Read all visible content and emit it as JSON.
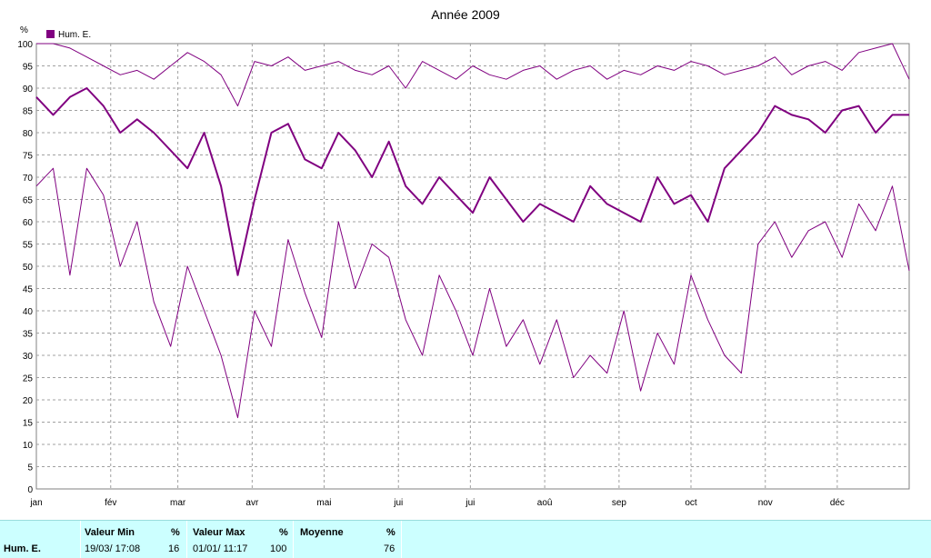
{
  "chart_data": {
    "type": "line",
    "title": "Année 2009",
    "ylabel": "%",
    "ylim": [
      0,
      100
    ],
    "yticks": [
      0,
      5,
      10,
      15,
      20,
      25,
      30,
      35,
      40,
      45,
      50,
      55,
      60,
      65,
      70,
      75,
      80,
      85,
      90,
      95,
      100
    ],
    "xlim": [
      1,
      365
    ],
    "months": [
      {
        "label": "jan",
        "day": 1
      },
      {
        "label": "fév",
        "day": 32
      },
      {
        "label": "mar",
        "day": 60
      },
      {
        "label": "avr",
        "day": 91
      },
      {
        "label": "mai",
        "day": 121
      },
      {
        "label": "jui",
        "day": 152
      },
      {
        "label": "jui",
        "day": 182
      },
      {
        "label": "aoû",
        "day": 213
      },
      {
        "label": "sep",
        "day": 244
      },
      {
        "label": "oct",
        "day": 274
      },
      {
        "label": "nov",
        "day": 305
      },
      {
        "label": "déc",
        "day": 335
      }
    ],
    "grid": true,
    "legend": {
      "placement": "top-left",
      "label": "Hum. E.",
      "color": "#800080"
    },
    "series": [
      {
        "name": "Hum. E.",
        "kind": "daily-mean",
        "color": "#800080",
        "x": [
          1,
          8,
          15,
          22,
          29,
          36,
          43,
          50,
          57,
          64,
          71,
          78,
          85,
          92,
          99,
          106,
          113,
          120,
          127,
          134,
          141,
          148,
          155,
          162,
          169,
          176,
          183,
          190,
          197,
          204,
          211,
          218,
          225,
          232,
          239,
          246,
          253,
          260,
          267,
          274,
          281,
          288,
          295,
          302,
          309,
          316,
          323,
          330,
          337,
          344,
          351,
          358,
          365
        ],
        "y": [
          88,
          84,
          88,
          90,
          86,
          80,
          83,
          80,
          76,
          72,
          80,
          68,
          48,
          65,
          80,
          82,
          74,
          72,
          80,
          76,
          70,
          78,
          68,
          64,
          70,
          66,
          62,
          70,
          65,
          60,
          64,
          62,
          60,
          68,
          64,
          62,
          60,
          70,
          64,
          66,
          60,
          72,
          76,
          80,
          86,
          84,
          83,
          80,
          85,
          86,
          80,
          84,
          84
        ]
      },
      {
        "name": "Hum. E. min",
        "kind": "daily-min",
        "color": "#800080",
        "x": [
          1,
          8,
          15,
          22,
          29,
          36,
          43,
          50,
          57,
          64,
          71,
          78,
          85,
          92,
          99,
          106,
          113,
          120,
          127,
          134,
          141,
          148,
          155,
          162,
          169,
          176,
          183,
          190,
          197,
          204,
          211,
          218,
          225,
          232,
          239,
          246,
          253,
          260,
          267,
          274,
          281,
          288,
          295,
          302,
          309,
          316,
          323,
          330,
          337,
          344,
          351,
          358,
          365
        ],
        "y": [
          68,
          72,
          48,
          72,
          66,
          50,
          60,
          42,
          32,
          50,
          40,
          30,
          16,
          40,
          32,
          56,
          44,
          34,
          60,
          45,
          55,
          52,
          38,
          30,
          48,
          40,
          30,
          45,
          32,
          38,
          28,
          38,
          25,
          30,
          26,
          40,
          22,
          35,
          28,
          48,
          38,
          30,
          26,
          55,
          60,
          52,
          58,
          60,
          52,
          64,
          58,
          68,
          49
        ]
      },
      {
        "name": "Hum. E. max",
        "kind": "daily-max",
        "color": "#800080",
        "x": [
          1,
          8,
          15,
          22,
          29,
          36,
          43,
          50,
          57,
          64,
          71,
          78,
          85,
          92,
          99,
          106,
          113,
          120,
          127,
          134,
          141,
          148,
          155,
          162,
          169,
          176,
          183,
          190,
          197,
          204,
          211,
          218,
          225,
          232,
          239,
          246,
          253,
          260,
          267,
          274,
          281,
          288,
          295,
          302,
          309,
          316,
          323,
          330,
          337,
          344,
          351,
          358,
          365
        ],
        "y": [
          100,
          100,
          99,
          97,
          95,
          93,
          94,
          92,
          95,
          98,
          96,
          93,
          86,
          96,
          95,
          97,
          94,
          95,
          96,
          94,
          93,
          95,
          90,
          96,
          94,
          92,
          95,
          93,
          92,
          94,
          95,
          92,
          94,
          95,
          92,
          94,
          93,
          95,
          94,
          96,
          95,
          93,
          94,
          95,
          97,
          93,
          95,
          96,
          94,
          98,
          99,
          100,
          92
        ]
      }
    ]
  },
  "stats": {
    "row_label": "Hum. E.",
    "min": {
      "header": "Valeur Min",
      "unit": "%",
      "date": "19/03/  17:08",
      "value": "16"
    },
    "max": {
      "header": "Valeur Max",
      "unit": "%",
      "date": "01/01/  11:17",
      "value": "100"
    },
    "avg": {
      "header": "Moyenne",
      "unit": "%",
      "value": "76"
    }
  }
}
